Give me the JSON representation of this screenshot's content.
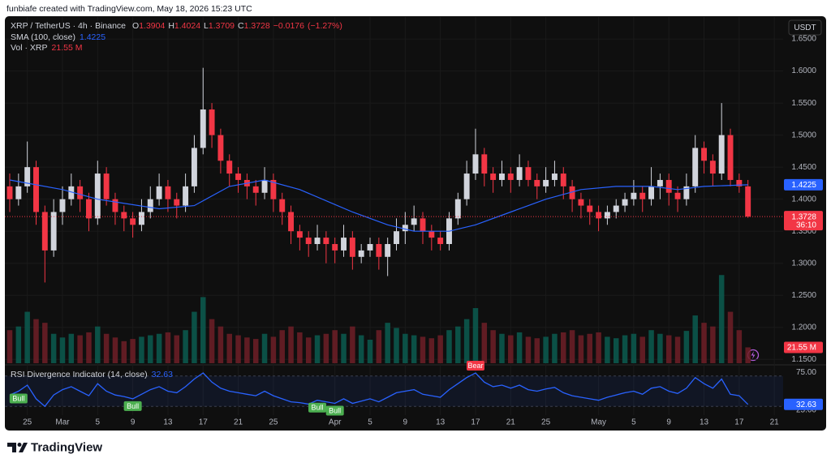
{
  "header": {
    "attribution": "funbiafe created with TradingView.com, May 18, 2026 15:23 UTC"
  },
  "footer": {
    "brand": "TradingView"
  },
  "chart_data": {
    "type": "candlestick",
    "symbol": "XRP / TetherUS · 4h · Binance",
    "ohlc_labels": [
      "O",
      "H",
      "L",
      "C"
    ],
    "last_ohlc": [
      1.3904,
      1.4024,
      1.3709,
      1.3728
    ],
    "change": {
      "value": -0.0176,
      "label": "−0.0176"
    },
    "change_pct": {
      "value": -1.27,
      "label": "(−1.27%)"
    },
    "currency": "USDT",
    "countdown": "36:10",
    "up_color": "#d1d4dc",
    "down_color": "#f23645",
    "grid": true,
    "xlim": [
      "02-23",
      "05-22"
    ],
    "xticks": [
      {
        "value": "02-25",
        "label": "25"
      },
      {
        "value": "03-01",
        "label": "Mar"
      },
      {
        "value": "03-05",
        "label": "5"
      },
      {
        "value": "03-09",
        "label": "9"
      },
      {
        "value": "03-13",
        "label": "13"
      },
      {
        "value": "03-17",
        "label": "17"
      },
      {
        "value": "03-21",
        "label": "21"
      },
      {
        "value": "03-25",
        "label": "25"
      },
      {
        "value": "04-01",
        "label": "Apr"
      },
      {
        "value": "04-05",
        "label": "5"
      },
      {
        "value": "04-09",
        "label": "9"
      },
      {
        "value": "04-13",
        "label": "13"
      },
      {
        "value": "04-17",
        "label": "17"
      },
      {
        "value": "04-21",
        "label": "21"
      },
      {
        "value": "04-25",
        "label": "25"
      },
      {
        "value": "05-01",
        "label": "May"
      },
      {
        "value": "05-05",
        "label": "5"
      },
      {
        "value": "05-09",
        "label": "9"
      },
      {
        "value": "05-13",
        "label": "13"
      },
      {
        "value": "05-17",
        "label": "17"
      },
      {
        "value": "05-21",
        "label": "21"
      }
    ],
    "ylim": [
      1.144,
      1.683
    ],
    "yticks": [
      {
        "value": 1.15,
        "label": "1.1500"
      },
      {
        "value": 1.2,
        "label": "1.2000"
      },
      {
        "value": 1.25,
        "label": "1.2500"
      },
      {
        "value": 1.3,
        "label": "1.3000"
      },
      {
        "value": 1.35,
        "label": "1.3500"
      },
      {
        "value": 1.4,
        "label": "1.4000"
      },
      {
        "value": 1.45,
        "label": "1.4500"
      },
      {
        "value": 1.5,
        "label": "1.5000"
      },
      {
        "value": 1.55,
        "label": "1.5500"
      },
      {
        "value": 1.6,
        "label": "1.6000"
      },
      {
        "value": 1.65,
        "label": "1.6500"
      }
    ],
    "x": [
      "02-23",
      "02-24",
      "02-25",
      "02-26",
      "02-27",
      "02-28",
      "03-01",
      "03-02",
      "03-03",
      "03-04",
      "03-05",
      "03-06",
      "03-07",
      "03-08",
      "03-09",
      "03-10",
      "03-11",
      "03-12",
      "03-13",
      "03-14",
      "03-15",
      "03-16",
      "03-17",
      "03-18",
      "03-19",
      "03-20",
      "03-21",
      "03-22",
      "03-23",
      "03-24",
      "03-25",
      "03-26",
      "03-27",
      "03-28",
      "03-29",
      "03-30",
      "03-31",
      "04-01",
      "04-02",
      "04-03",
      "04-04",
      "04-05",
      "04-06",
      "04-07",
      "04-08",
      "04-09",
      "04-10",
      "04-11",
      "04-12",
      "04-13",
      "04-14",
      "04-15",
      "04-16",
      "04-17",
      "04-18",
      "04-19",
      "04-20",
      "04-21",
      "04-22",
      "04-23",
      "04-24",
      "04-25",
      "04-26",
      "04-27",
      "04-28",
      "04-29",
      "04-30",
      "05-01",
      "05-02",
      "05-03",
      "05-04",
      "05-05",
      "05-06",
      "05-07",
      "05-08",
      "05-09",
      "05-10",
      "05-11",
      "05-12",
      "05-13",
      "05-14",
      "05-15",
      "05-16",
      "05-17",
      "05-18"
    ],
    "ohlc": [
      [
        1.42,
        1.44,
        1.38,
        1.4
      ],
      [
        1.4,
        1.44,
        1.39,
        1.42
      ],
      [
        1.42,
        1.49,
        1.41,
        1.45
      ],
      [
        1.45,
        1.46,
        1.36,
        1.38
      ],
      [
        1.38,
        1.39,
        1.27,
        1.32
      ],
      [
        1.32,
        1.4,
        1.31,
        1.38
      ],
      [
        1.38,
        1.42,
        1.36,
        1.4
      ],
      [
        1.4,
        1.44,
        1.39,
        1.42
      ],
      [
        1.42,
        1.43,
        1.38,
        1.4
      ],
      [
        1.4,
        1.41,
        1.35,
        1.37
      ],
      [
        1.37,
        1.46,
        1.36,
        1.44
      ],
      [
        1.44,
        1.45,
        1.39,
        1.4
      ],
      [
        1.4,
        1.41,
        1.36,
        1.38
      ],
      [
        1.38,
        1.39,
        1.35,
        1.37
      ],
      [
        1.37,
        1.38,
        1.34,
        1.36
      ],
      [
        1.36,
        1.4,
        1.35,
        1.38
      ],
      [
        1.38,
        1.42,
        1.37,
        1.4
      ],
      [
        1.4,
        1.44,
        1.39,
        1.42
      ],
      [
        1.42,
        1.43,
        1.38,
        1.4
      ],
      [
        1.4,
        1.41,
        1.37,
        1.39
      ],
      [
        1.39,
        1.44,
        1.38,
        1.42
      ],
      [
        1.42,
        1.5,
        1.41,
        1.48
      ],
      [
        1.48,
        1.605,
        1.47,
        1.54
      ],
      [
        1.54,
        1.55,
        1.48,
        1.5
      ],
      [
        1.5,
        1.51,
        1.44,
        1.46
      ],
      [
        1.46,
        1.47,
        1.42,
        1.44
      ],
      [
        1.44,
        1.45,
        1.41,
        1.43
      ],
      [
        1.43,
        1.44,
        1.4,
        1.42
      ],
      [
        1.42,
        1.43,
        1.39,
        1.41
      ],
      [
        1.41,
        1.45,
        1.4,
        1.43
      ],
      [
        1.43,
        1.44,
        1.38,
        1.4
      ],
      [
        1.4,
        1.41,
        1.36,
        1.38
      ],
      [
        1.38,
        1.39,
        1.33,
        1.35
      ],
      [
        1.35,
        1.36,
        1.32,
        1.34
      ],
      [
        1.34,
        1.35,
        1.31,
        1.33
      ],
      [
        1.33,
        1.36,
        1.32,
        1.34
      ],
      [
        1.34,
        1.35,
        1.3,
        1.33
      ],
      [
        1.33,
        1.34,
        1.3,
        1.32
      ],
      [
        1.32,
        1.36,
        1.31,
        1.34
      ],
      [
        1.34,
        1.35,
        1.29,
        1.31
      ],
      [
        1.31,
        1.33,
        1.3,
        1.32
      ],
      [
        1.32,
        1.34,
        1.31,
        1.33
      ],
      [
        1.33,
        1.34,
        1.29,
        1.31
      ],
      [
        1.31,
        1.34,
        1.28,
        1.33
      ],
      [
        1.33,
        1.37,
        1.32,
        1.35
      ],
      [
        1.35,
        1.38,
        1.33,
        1.36
      ],
      [
        1.36,
        1.39,
        1.35,
        1.37
      ],
      [
        1.37,
        1.38,
        1.33,
        1.35
      ],
      [
        1.35,
        1.36,
        1.32,
        1.34
      ],
      [
        1.34,
        1.35,
        1.32,
        1.33
      ],
      [
        1.33,
        1.38,
        1.32,
        1.37
      ],
      [
        1.37,
        1.41,
        1.36,
        1.4
      ],
      [
        1.4,
        1.46,
        1.39,
        1.44
      ],
      [
        1.44,
        1.51,
        1.43,
        1.47
      ],
      [
        1.47,
        1.48,
        1.42,
        1.44
      ],
      [
        1.44,
        1.45,
        1.41,
        1.43
      ],
      [
        1.43,
        1.46,
        1.42,
        1.44
      ],
      [
        1.44,
        1.45,
        1.41,
        1.43
      ],
      [
        1.43,
        1.47,
        1.42,
        1.45
      ],
      [
        1.45,
        1.46,
        1.42,
        1.43
      ],
      [
        1.43,
        1.44,
        1.4,
        1.42
      ],
      [
        1.42,
        1.45,
        1.41,
        1.43
      ],
      [
        1.43,
        1.46,
        1.42,
        1.44
      ],
      [
        1.44,
        1.45,
        1.4,
        1.42
      ],
      [
        1.42,
        1.43,
        1.38,
        1.4
      ],
      [
        1.4,
        1.41,
        1.37,
        1.39
      ],
      [
        1.39,
        1.4,
        1.36,
        1.38
      ],
      [
        1.38,
        1.39,
        1.35,
        1.37
      ],
      [
        1.37,
        1.39,
        1.36,
        1.38
      ],
      [
        1.38,
        1.4,
        1.37,
        1.39
      ],
      [
        1.39,
        1.41,
        1.38,
        1.4
      ],
      [
        1.4,
        1.43,
        1.39,
        1.41
      ],
      [
        1.41,
        1.42,
        1.38,
        1.4
      ],
      [
        1.4,
        1.45,
        1.39,
        1.42
      ],
      [
        1.42,
        1.44,
        1.4,
        1.43
      ],
      [
        1.43,
        1.44,
        1.39,
        1.41
      ],
      [
        1.41,
        1.42,
        1.38,
        1.4
      ],
      [
        1.4,
        1.44,
        1.39,
        1.42
      ],
      [
        1.42,
        1.5,
        1.41,
        1.48
      ],
      [
        1.48,
        1.49,
        1.44,
        1.46
      ],
      [
        1.46,
        1.47,
        1.42,
        1.44
      ],
      [
        1.44,
        1.55,
        1.43,
        1.5
      ],
      [
        1.5,
        1.51,
        1.42,
        1.43
      ],
      [
        1.43,
        1.44,
        1.41,
        1.42
      ],
      [
        1.42,
        1.43,
        1.3709,
        1.3728
      ]
    ],
    "sma": {
      "name": "SMA (100, close)",
      "last": 1.4225,
      "color": "#2962ff",
      "x": [
        "02-23",
        "03-01",
        "03-05",
        "03-12",
        "03-16",
        "03-20",
        "03-24",
        "03-28",
        "04-03",
        "04-07",
        "04-10",
        "04-14",
        "04-17",
        "04-21",
        "04-25",
        "04-29",
        "05-03",
        "05-07",
        "05-10",
        "05-13",
        "05-18"
      ],
      "values": [
        1.43,
        1.415,
        1.4,
        1.385,
        1.39,
        1.42,
        1.43,
        1.415,
        1.38,
        1.36,
        1.35,
        1.35,
        1.36,
        1.38,
        1.4,
        1.415,
        1.42,
        1.42,
        1.415,
        1.42,
        1.4225
      ]
    },
    "volume": {
      "name": "Vol · XRP",
      "last": {
        "value": 21.55,
        "label": "21.55 M"
      },
      "lim": [
        0,
        470
      ],
      "values": [
        45,
        50,
        70,
        60,
        55,
        40,
        35,
        40,
        38,
        42,
        50,
        40,
        35,
        30,
        33,
        36,
        38,
        40,
        42,
        38,
        45,
        70,
        90,
        60,
        50,
        40,
        38,
        35,
        33,
        40,
        36,
        45,
        50,
        42,
        35,
        38,
        40,
        45,
        40,
        50,
        38,
        32,
        45,
        55,
        48,
        40,
        38,
        36,
        34,
        38,
        45,
        50,
        60,
        75,
        55,
        45,
        40,
        38,
        42,
        36,
        34,
        36,
        40,
        42,
        45,
        38,
        40,
        42,
        36,
        34,
        38,
        40,
        36,
        45,
        40,
        38,
        36,
        44,
        65,
        55,
        50,
        120,
        70,
        45,
        21.55
      ]
    },
    "rsi": {
      "name": "RSI Divergence Indicator (14, close)",
      "last": 32.63,
      "color": "#2962ff",
      "ylim": [
        18.5,
        82.6
      ],
      "yticks": [
        {
          "value": 75,
          "label": "75.00"
        },
        {
          "value": 25,
          "label": "25.00"
        }
      ],
      "band": [
        30,
        70
      ],
      "values": [
        45,
        50,
        58,
        40,
        30,
        45,
        52,
        56,
        50,
        44,
        60,
        50,
        45,
        43,
        40,
        46,
        52,
        56,
        50,
        48,
        56,
        66,
        74,
        62,
        54,
        50,
        48,
        46,
        44,
        50,
        44,
        40,
        36,
        35,
        33,
        38,
        36,
        34,
        40,
        34,
        37,
        40,
        36,
        42,
        48,
        50,
        52,
        46,
        44,
        42,
        52,
        60,
        68,
        74,
        62,
        56,
        58,
        54,
        58,
        52,
        50,
        53,
        55,
        48,
        44,
        42,
        40,
        38,
        42,
        45,
        48,
        50,
        46,
        54,
        56,
        50,
        47,
        54,
        68,
        60,
        54,
        66,
        46,
        44,
        32.63
      ],
      "signals": [
        {
          "label": "Bull",
          "x": "02-24"
        },
        {
          "label": "Bull",
          "x": "03-09"
        },
        {
          "label": "Bull",
          "x": "03-30"
        },
        {
          "label": "Bull",
          "x": "04-01"
        },
        {
          "label": "Bear",
          "x": "04-17"
        }
      ]
    }
  }
}
